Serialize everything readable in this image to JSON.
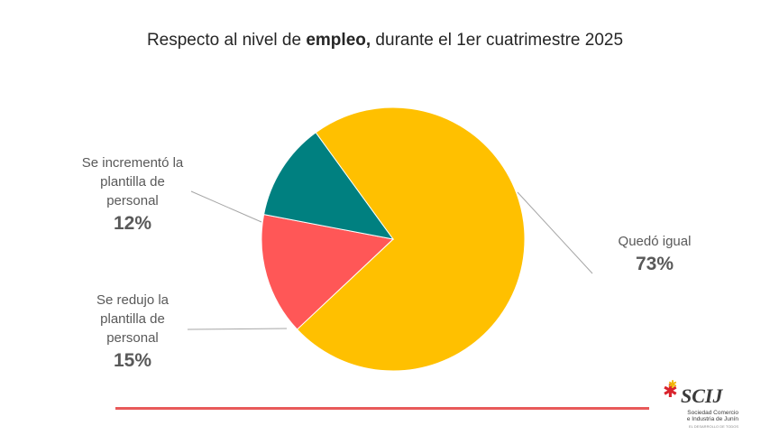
{
  "chart_data": {
    "type": "pie",
    "title_pre": "Respecto al nivel de ",
    "title_bold": "empleo,",
    "title_post": " durante el 1er cuatrimestre 2025",
    "slices": [
      {
        "label": "Quedó igual",
        "value": 73,
        "pct_text": "73%",
        "color": "#FFC000"
      },
      {
        "label": "Se redujo la plantilla de personal",
        "value": 15,
        "pct_text": "15%",
        "color": "#FF5757"
      },
      {
        "label": "Se incrementó la plantilla de personal",
        "value": 12,
        "pct_text": "12%",
        "color": "#008080"
      }
    ]
  },
  "labels": {
    "inc_line1": "Se incrementó la",
    "inc_line2": "plantilla de",
    "inc_line3": "personal",
    "red_line1": "Se redujo la",
    "red_line2": "plantilla de",
    "red_line3": "personal",
    "igual_line1": "Quedó igual"
  },
  "logo": {
    "name": "SCIJ",
    "line1": "Sociedad Comercio",
    "line2": "e Industria de Junín",
    "tagline": "EL DESARROLLO DE TODOS"
  },
  "colors": {
    "bottom_line": "#E85A5A"
  }
}
